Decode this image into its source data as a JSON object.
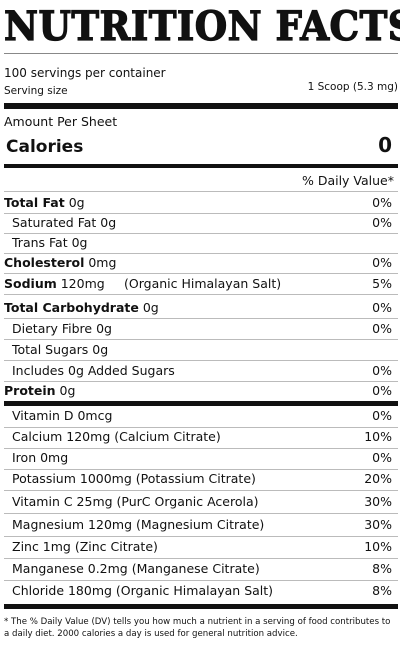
{
  "title": "NUTRITION FACTS",
  "servings_per_container": "100 servings per container",
  "serving_size_label": "Serving size",
  "serving_size_value": "1 Scoop (5.3 mg)",
  "amount_per": "Amount Per Sheet",
  "calories_label": "Calories",
  "calories_value": "0",
  "dv_header": "% Daily Value*",
  "nutrients": [
    {
      "label": "Total Fat",
      "amount": "0g",
      "dv": "0%",
      "bold": true,
      "indent": false
    },
    {
      "label": "Saturated Fat",
      "amount": "0g",
      "dv": "0%",
      "bold": false,
      "indent": true
    },
    {
      "label": "Trans Fat",
      "amount": "0g",
      "dv": "",
      "bold": false,
      "indent": true
    },
    {
      "label": "Cholesterol",
      "amount": "0mg",
      "dv": "0%",
      "bold": true,
      "indent": false
    },
    {
      "label": "Sodium",
      "amount": "120mg",
      "extra": "(Organic Himalayan Salt)",
      "dv": "5%",
      "bold": true,
      "indent": false
    },
    {
      "label": "Total Carbohydrate",
      "amount": "0g",
      "dv": "0%",
      "bold": true,
      "indent": false
    },
    {
      "label": "Dietary Fibre",
      "amount": "0g",
      "dv": "0%",
      "bold": false,
      "indent": true
    },
    {
      "label": "Total Sugars",
      "amount": "0g",
      "dv": "",
      "bold": false,
      "indent": true
    },
    {
      "label": "Includes 0g Added Sugars",
      "amount": "",
      "dv": "0%",
      "bold": false,
      "indent": true
    },
    {
      "label": "Protein",
      "amount": "0g",
      "dv": "0%",
      "bold": true,
      "indent": false
    }
  ],
  "vitamins": [
    {
      "text": "Vitamin D 0mcg",
      "dv": "0%"
    },
    {
      "text": "Calcium 120mg (Calcium Citrate)",
      "dv": "10%"
    },
    {
      "text": "Iron 0mg",
      "dv": "0%"
    },
    {
      "text": "Potassium 1000mg (Potassium Citrate)",
      "dv": "20%"
    },
    {
      "text": "Vitamin C 25mg (PurC Organic Acerola)",
      "dv": "30%"
    },
    {
      "text": "Magnesium 120mg (Magnesium Citrate)",
      "dv": "30%"
    },
    {
      "text": "Zinc 1mg (Zinc Citrate)",
      "dv": "10%"
    },
    {
      "text": "Manganese 0.2mg (Manganese Citrate)",
      "dv": "8%"
    },
    {
      "text": "Chloride 180mg (Organic Himalayan Salt)",
      "dv": "8%"
    }
  ],
  "footnote": "* The % Daily Value (DV) tells you how much a nutrient in a serving of food contributes to a daily diet. 2000 calories a day is used for general nutrition advice."
}
